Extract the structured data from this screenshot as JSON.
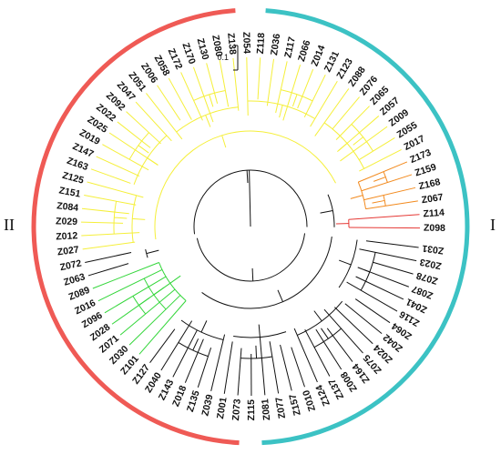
{
  "colors": {
    "group1_arc": "#3cc2c4",
    "group2_arc": "#ef5a55",
    "black": "#111111",
    "red": "#e53935",
    "orange": "#f28a1e",
    "yellow": "#f5ef3a",
    "green": "#33d63a"
  },
  "groups": [
    {
      "id": "group-I",
      "label": "I"
    },
    {
      "id": "group-II",
      "label": "II"
    }
  ],
  "scale_bar": {
    "label": "0.1"
  },
  "leaves": [
    {
      "name": "Z098",
      "color": "red"
    },
    {
      "name": "Z114",
      "color": "red"
    },
    {
      "name": "Z067",
      "color": "orange"
    },
    {
      "name": "Z168",
      "color": "orange"
    },
    {
      "name": "Z159",
      "color": "orange"
    },
    {
      "name": "Z173",
      "color": "orange"
    },
    {
      "name": "Z017",
      "color": "yellow"
    },
    {
      "name": "Z055",
      "color": "yellow"
    },
    {
      "name": "Z009",
      "color": "yellow"
    },
    {
      "name": "Z057",
      "color": "yellow"
    },
    {
      "name": "Z065",
      "color": "yellow"
    },
    {
      "name": "Z076",
      "color": "yellow"
    },
    {
      "name": "Z088",
      "color": "yellow"
    },
    {
      "name": "Z123",
      "color": "yellow"
    },
    {
      "name": "Z131",
      "color": "yellow"
    },
    {
      "name": "Z014",
      "color": "yellow"
    },
    {
      "name": "Z066",
      "color": "yellow"
    },
    {
      "name": "Z117",
      "color": "yellow"
    },
    {
      "name": "Z036",
      "color": "yellow"
    },
    {
      "name": "Z118",
      "color": "yellow"
    },
    {
      "name": "Z054",
      "color": "yellow"
    },
    {
      "name": "Z138",
      "color": "yellow"
    },
    {
      "name": "Z080",
      "color": "yellow"
    },
    {
      "name": "Z130",
      "color": "yellow"
    },
    {
      "name": "Z170",
      "color": "yellow"
    },
    {
      "name": "Z172",
      "color": "yellow"
    },
    {
      "name": "Z058",
      "color": "yellow"
    },
    {
      "name": "Z006",
      "color": "yellow"
    },
    {
      "name": "Z051",
      "color": "yellow"
    },
    {
      "name": "Z047",
      "color": "yellow"
    },
    {
      "name": "Z092",
      "color": "yellow"
    },
    {
      "name": "Z022",
      "color": "yellow"
    },
    {
      "name": "Z025",
      "color": "yellow"
    },
    {
      "name": "Z019",
      "color": "yellow"
    },
    {
      "name": "Z147",
      "color": "yellow"
    },
    {
      "name": "Z163",
      "color": "yellow"
    },
    {
      "name": "Z125",
      "color": "yellow"
    },
    {
      "name": "Z151",
      "color": "yellow"
    },
    {
      "name": "Z084",
      "color": "yellow"
    },
    {
      "name": "Z029",
      "color": "yellow"
    },
    {
      "name": "Z012",
      "color": "yellow"
    },
    {
      "name": "Z027",
      "color": "yellow"
    },
    {
      "name": "Z072",
      "color": "black"
    },
    {
      "name": "Z063",
      "color": "black"
    },
    {
      "name": "Z089",
      "color": "green"
    },
    {
      "name": "Z016",
      "color": "green"
    },
    {
      "name": "Z096",
      "color": "green"
    },
    {
      "name": "Z028",
      "color": "green"
    },
    {
      "name": "Z071",
      "color": "green"
    },
    {
      "name": "Z030",
      "color": "green"
    },
    {
      "name": "Z101",
      "color": "green"
    },
    {
      "name": "Z127",
      "color": "black"
    },
    {
      "name": "Z040",
      "color": "black"
    },
    {
      "name": "Z143",
      "color": "black"
    },
    {
      "name": "Z018",
      "color": "black"
    },
    {
      "name": "Z135",
      "color": "black"
    },
    {
      "name": "Z039",
      "color": "black"
    },
    {
      "name": "Z001",
      "color": "black"
    },
    {
      "name": "Z073",
      "color": "black"
    },
    {
      "name": "Z115",
      "color": "black"
    },
    {
      "name": "Z081",
      "color": "black"
    },
    {
      "name": "Z077",
      "color": "black"
    },
    {
      "name": "Z157",
      "color": "black"
    },
    {
      "name": "Z010",
      "color": "black"
    },
    {
      "name": "Z124",
      "color": "black"
    },
    {
      "name": "Z137",
      "color": "black"
    },
    {
      "name": "Z008",
      "color": "black"
    },
    {
      "name": "Z164",
      "color": "black"
    },
    {
      "name": "Z075",
      "color": "black"
    },
    {
      "name": "Z024",
      "color": "black"
    },
    {
      "name": "Z042",
      "color": "black"
    },
    {
      "name": "Z064",
      "color": "black"
    },
    {
      "name": "Z116",
      "color": "black"
    },
    {
      "name": "Z041",
      "color": "black"
    },
    {
      "name": "Z087",
      "color": "black"
    },
    {
      "name": "Z078",
      "color": "black"
    },
    {
      "name": "Z023",
      "color": "black"
    },
    {
      "name": "Z031",
      "color": "black"
    }
  ]
}
